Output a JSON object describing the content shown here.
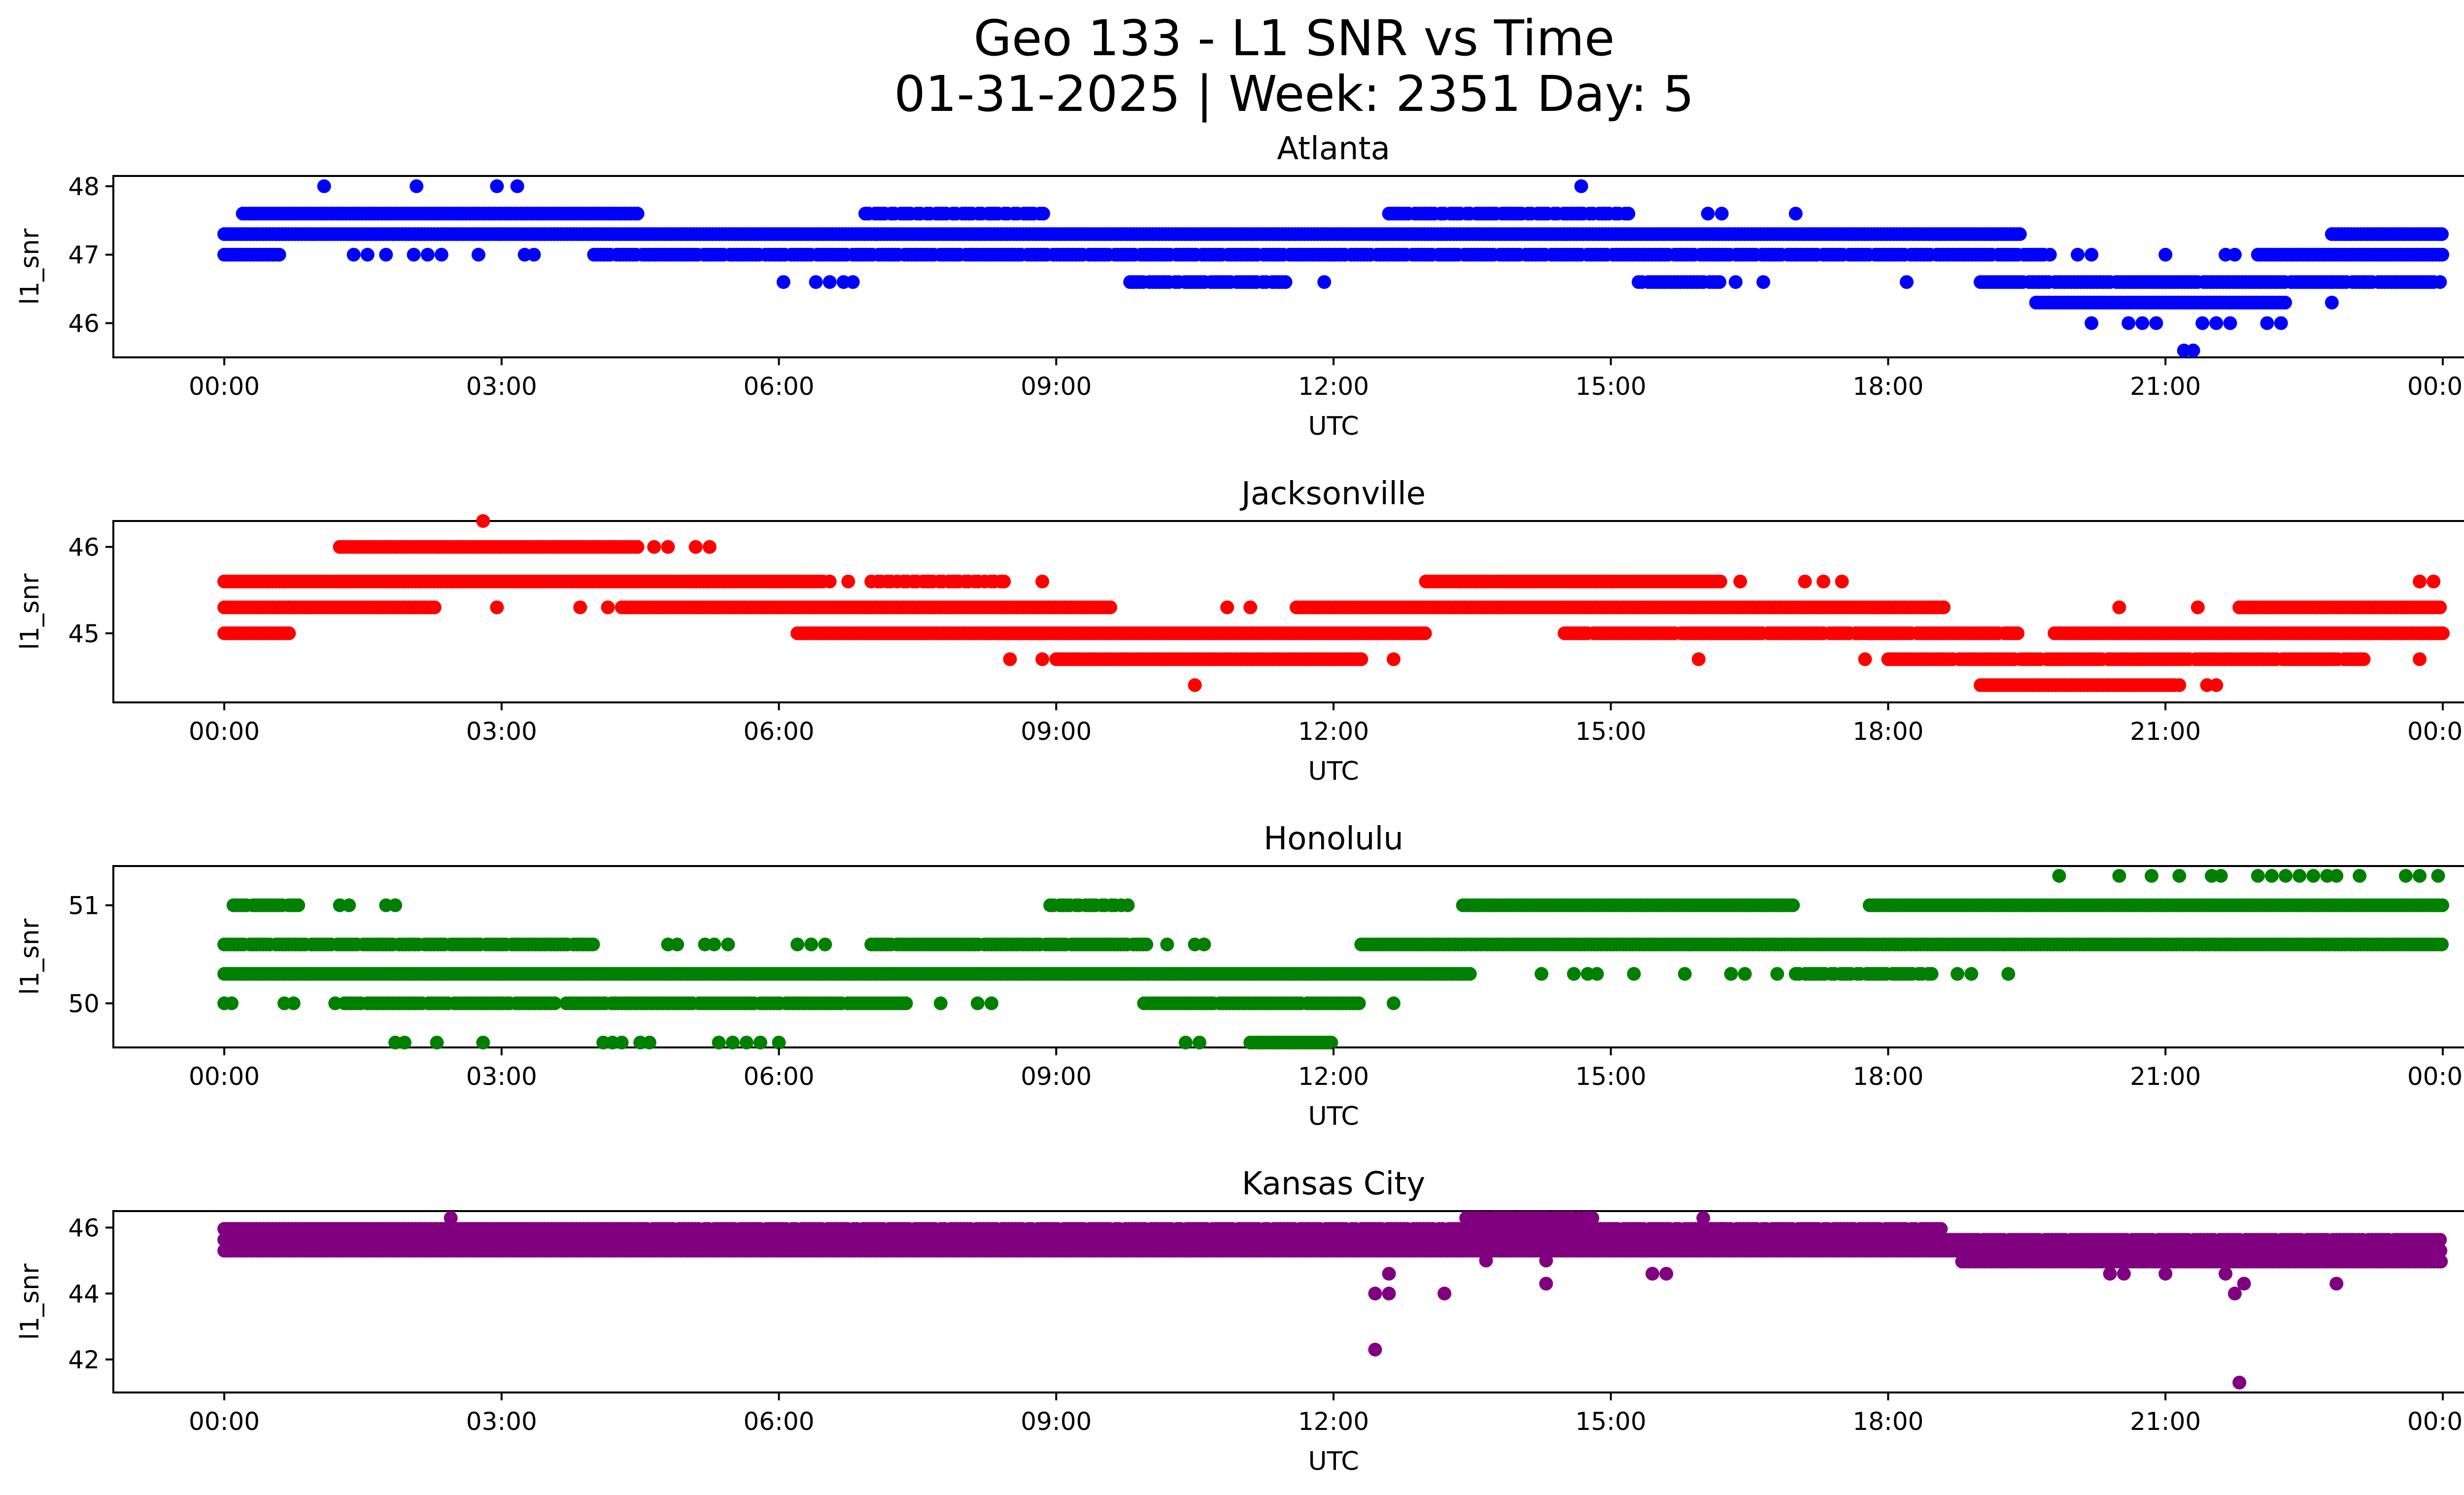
{
  "figure": {
    "title_line1": "Geo 133 - L1 SNR vs Time",
    "title_line2": "01-31-2025 | Week: 2351 Day: 5"
  },
  "chart_data": [
    {
      "type": "scatter",
      "title": "Atlanta",
      "xlabel": "UTC",
      "ylabel": "l1_snr",
      "color": "#0000ff",
      "xlim_hours": [
        -1.2,
        25.2
      ],
      "ylim": [
        45.5,
        48.15
      ],
      "yticks": [
        46,
        47,
        48
      ],
      "xticks_hours": [
        0,
        3,
        6,
        9,
        12,
        15,
        18,
        21,
        24
      ],
      "xtick_labels": [
        "00:00",
        "03:00",
        "06:00",
        "09:00",
        "12:00",
        "15:00",
        "18:00",
        "21:00",
        "00:00"
      ],
      "bands": [
        {
          "y": 47.3,
          "from": 0.0,
          "to": 19.45,
          "density": 1.0
        },
        {
          "y": 47.0,
          "from": 0.0,
          "to": 0.6,
          "density": 1.0
        },
        {
          "y": 47.0,
          "from": 4.0,
          "to": 19.7,
          "density": 0.9
        },
        {
          "y": 47.0,
          "from": 22.0,
          "to": 24.0,
          "density": 1.0
        },
        {
          "y": 47.6,
          "from": 0.2,
          "to": 4.5,
          "density": 1.0
        },
        {
          "y": 47.6,
          "from": 6.9,
          "to": 8.9,
          "density": 0.75
        },
        {
          "y": 47.6,
          "from": 12.6,
          "to": 15.2,
          "density": 0.8
        },
        {
          "y": 46.6,
          "from": 9.8,
          "to": 11.5,
          "density": 0.85
        },
        {
          "y": 46.6,
          "from": 15.3,
          "to": 16.2,
          "density": 0.9
        },
        {
          "y": 46.6,
          "from": 19.0,
          "to": 24.0,
          "density": 0.95
        },
        {
          "y": 46.3,
          "from": 19.6,
          "to": 22.3,
          "density": 1.0
        },
        {
          "y": 47.3,
          "from": 22.8,
          "to": 24.0,
          "density": 1.0
        }
      ],
      "points": [
        {
          "x": 1.08,
          "y": 48.0
        },
        {
          "x": 2.08,
          "y": 48.0
        },
        {
          "x": 2.95,
          "y": 48.0
        },
        {
          "x": 3.17,
          "y": 48.0
        },
        {
          "x": 14.68,
          "y": 48.0
        },
        {
          "x": 1.4,
          "y": 47.0
        },
        {
          "x": 1.55,
          "y": 47.0
        },
        {
          "x": 1.75,
          "y": 47.0
        },
        {
          "x": 2.05,
          "y": 47.0
        },
        {
          "x": 2.2,
          "y": 47.0
        },
        {
          "x": 2.35,
          "y": 47.0
        },
        {
          "x": 2.75,
          "y": 47.0
        },
        {
          "x": 3.25,
          "y": 47.0
        },
        {
          "x": 3.35,
          "y": 47.0
        },
        {
          "x": 6.05,
          "y": 46.6
        },
        {
          "x": 6.4,
          "y": 46.6
        },
        {
          "x": 6.55,
          "y": 46.6
        },
        {
          "x": 6.7,
          "y": 46.6
        },
        {
          "x": 6.8,
          "y": 46.6
        },
        {
          "x": 11.9,
          "y": 46.6
        },
        {
          "x": 16.35,
          "y": 46.6
        },
        {
          "x": 16.65,
          "y": 46.6
        },
        {
          "x": 18.2,
          "y": 46.6
        },
        {
          "x": 16.05,
          "y": 47.6
        },
        {
          "x": 16.2,
          "y": 47.6
        },
        {
          "x": 17.0,
          "y": 47.6
        },
        {
          "x": 20.2,
          "y": 46.0
        },
        {
          "x": 20.6,
          "y": 46.0
        },
        {
          "x": 20.75,
          "y": 46.0
        },
        {
          "x": 20.9,
          "y": 46.0
        },
        {
          "x": 21.4,
          "y": 46.0
        },
        {
          "x": 21.55,
          "y": 46.0
        },
        {
          "x": 21.7,
          "y": 46.0
        },
        {
          "x": 22.1,
          "y": 46.0
        },
        {
          "x": 22.25,
          "y": 46.0
        },
        {
          "x": 21.2,
          "y": 45.6
        },
        {
          "x": 21.3,
          "y": 45.6
        },
        {
          "x": 19.75,
          "y": 47.0
        },
        {
          "x": 20.05,
          "y": 47.0
        },
        {
          "x": 20.2,
          "y": 47.0
        },
        {
          "x": 21.0,
          "y": 47.0
        },
        {
          "x": 21.65,
          "y": 47.0
        },
        {
          "x": 21.75,
          "y": 47.0
        },
        {
          "x": 22.8,
          "y": 46.3
        },
        {
          "x": 23.7,
          "y": 46.6
        },
        {
          "x": 23.8,
          "y": 46.6
        }
      ]
    },
    {
      "type": "scatter",
      "title": "Jacksonville",
      "xlabel": "UTC",
      "ylabel": "l1_snr",
      "color": "#ff0000",
      "xlim_hours": [
        -1.2,
        25.2
      ],
      "ylim": [
        44.2,
        46.3
      ],
      "yticks": [
        45,
        46
      ],
      "xticks_hours": [
        0,
        3,
        6,
        9,
        12,
        15,
        18,
        21,
        24
      ],
      "xtick_labels": [
        "00:00",
        "03:00",
        "06:00",
        "09:00",
        "12:00",
        "15:00",
        "18:00",
        "21:00",
        "00:00"
      ],
      "bands": [
        {
          "y": 45.3,
          "from": 0.0,
          "to": 0.7,
          "density": 1.0
        },
        {
          "y": 45.0,
          "from": 0.0,
          "to": 0.7,
          "density": 1.0
        },
        {
          "y": 45.6,
          "from": 0.0,
          "to": 6.5,
          "density": 1.0
        },
        {
          "y": 45.3,
          "from": 0.7,
          "to": 2.3,
          "density": 1.0
        },
        {
          "y": 45.3,
          "from": 4.3,
          "to": 9.6,
          "density": 1.0
        },
        {
          "y": 46.0,
          "from": 1.25,
          "to": 4.5,
          "density": 1.0
        },
        {
          "y": 45.6,
          "from": 7.0,
          "to": 8.5,
          "density": 0.7
        },
        {
          "y": 45.0,
          "from": 6.2,
          "to": 13.0,
          "density": 1.0
        },
        {
          "y": 44.7,
          "from": 9.0,
          "to": 12.3,
          "density": 1.0
        },
        {
          "y": 45.3,
          "from": 11.6,
          "to": 18.6,
          "density": 1.0
        },
        {
          "y": 45.6,
          "from": 13.0,
          "to": 16.2,
          "density": 1.0
        },
        {
          "y": 45.0,
          "from": 14.5,
          "to": 19.4,
          "density": 0.95
        },
        {
          "y": 44.7,
          "from": 18.0,
          "to": 23.2,
          "density": 0.95
        },
        {
          "y": 44.4,
          "from": 19.0,
          "to": 21.1,
          "density": 1.0
        },
        {
          "y": 45.0,
          "from": 19.8,
          "to": 24.0,
          "density": 1.0
        },
        {
          "y": 45.3,
          "from": 21.8,
          "to": 24.0,
          "density": 1.0
        }
      ],
      "points": [
        {
          "x": 2.8,
          "y": 46.3
        },
        {
          "x": 2.95,
          "y": 45.3
        },
        {
          "x": 3.85,
          "y": 45.3
        },
        {
          "x": 4.15,
          "y": 45.3
        },
        {
          "x": 4.65,
          "y": 46.0
        },
        {
          "x": 4.8,
          "y": 46.0
        },
        {
          "x": 5.1,
          "y": 46.0
        },
        {
          "x": 5.25,
          "y": 46.0
        },
        {
          "x": 6.55,
          "y": 45.6
        },
        {
          "x": 6.75,
          "y": 45.6
        },
        {
          "x": 8.85,
          "y": 45.6
        },
        {
          "x": 8.5,
          "y": 44.7
        },
        {
          "x": 8.85,
          "y": 44.7
        },
        {
          "x": 10.5,
          "y": 44.4
        },
        {
          "x": 10.85,
          "y": 45.3
        },
        {
          "x": 11.1,
          "y": 45.3
        },
        {
          "x": 12.3,
          "y": 44.7
        },
        {
          "x": 12.65,
          "y": 44.7
        },
        {
          "x": 16.4,
          "y": 45.6
        },
        {
          "x": 17.1,
          "y": 45.6
        },
        {
          "x": 17.3,
          "y": 45.6
        },
        {
          "x": 17.5,
          "y": 45.6
        },
        {
          "x": 15.95,
          "y": 44.7
        },
        {
          "x": 17.75,
          "y": 44.7
        },
        {
          "x": 18.45,
          "y": 45.3
        },
        {
          "x": 18.6,
          "y": 45.3
        },
        {
          "x": 19.05,
          "y": 45.0
        },
        {
          "x": 21.15,
          "y": 44.4
        },
        {
          "x": 21.45,
          "y": 44.4
        },
        {
          "x": 21.55,
          "y": 44.4
        },
        {
          "x": 20.5,
          "y": 45.3
        },
        {
          "x": 21.35,
          "y": 45.3
        },
        {
          "x": 23.75,
          "y": 45.6
        },
        {
          "x": 23.9,
          "y": 45.6
        },
        {
          "x": 23.75,
          "y": 44.7
        }
      ]
    },
    {
      "type": "scatter",
      "title": "Honolulu",
      "xlabel": "UTC",
      "ylabel": "l1_snr",
      "color": "#008000",
      "xlim_hours": [
        -1.2,
        25.2
      ],
      "ylim": [
        49.55,
        51.4
      ],
      "yticks": [
        50,
        51
      ],
      "xticks_hours": [
        0,
        3,
        6,
        9,
        12,
        15,
        18,
        21,
        24
      ],
      "xtick_labels": [
        "00:00",
        "03:00",
        "06:00",
        "09:00",
        "12:00",
        "15:00",
        "18:00",
        "21:00",
        "00:00"
      ],
      "bands": [
        {
          "y": 50.6,
          "from": 0.0,
          "to": 4.0,
          "density": 0.9
        },
        {
          "y": 50.3,
          "from": 0.0,
          "to": 13.5,
          "density": 1.0
        },
        {
          "y": 50.0,
          "from": 1.3,
          "to": 3.6,
          "density": 0.95
        },
        {
          "y": 50.0,
          "from": 3.7,
          "to": 7.4,
          "density": 0.95
        },
        {
          "y": 50.6,
          "from": 7.0,
          "to": 10.0,
          "density": 0.95
        },
        {
          "y": 50.0,
          "from": 10.0,
          "to": 12.3,
          "density": 0.95
        },
        {
          "y": 49.6,
          "from": 11.1,
          "to": 12.0,
          "density": 1.0
        },
        {
          "y": 50.6,
          "from": 12.3,
          "to": 24.0,
          "density": 1.0
        },
        {
          "y": 51.0,
          "from": 13.4,
          "to": 17.0,
          "density": 1.0
        },
        {
          "y": 51.0,
          "from": 17.8,
          "to": 24.0,
          "density": 1.0
        },
        {
          "y": 50.3,
          "from": 17.0,
          "to": 18.5,
          "density": 0.8
        },
        {
          "y": 51.0,
          "from": 0.1,
          "to": 0.8,
          "density": 0.9
        },
        {
          "y": 51.0,
          "from": 8.9,
          "to": 9.8,
          "density": 0.7
        }
      ],
      "points": [
        {
          "x": 0.0,
          "y": 50.0
        },
        {
          "x": 0.08,
          "y": 50.0
        },
        {
          "x": 0.65,
          "y": 50.0
        },
        {
          "x": 0.75,
          "y": 50.0
        },
        {
          "x": 1.2,
          "y": 50.0
        },
        {
          "x": 1.25,
          "y": 51.0
        },
        {
          "x": 1.35,
          "y": 51.0
        },
        {
          "x": 1.75,
          "y": 51.0
        },
        {
          "x": 1.85,
          "y": 51.0
        },
        {
          "x": 1.85,
          "y": 49.6
        },
        {
          "x": 1.95,
          "y": 49.6
        },
        {
          "x": 2.3,
          "y": 49.6
        },
        {
          "x": 2.8,
          "y": 49.6
        },
        {
          "x": 4.1,
          "y": 49.6
        },
        {
          "x": 4.2,
          "y": 49.6
        },
        {
          "x": 4.3,
          "y": 49.6
        },
        {
          "x": 4.5,
          "y": 49.6
        },
        {
          "x": 4.6,
          "y": 49.6
        },
        {
          "x": 5.35,
          "y": 49.6
        },
        {
          "x": 5.5,
          "y": 49.6
        },
        {
          "x": 5.65,
          "y": 49.6
        },
        {
          "x": 5.8,
          "y": 49.6
        },
        {
          "x": 6.0,
          "y": 49.6
        },
        {
          "x": 4.8,
          "y": 50.6
        },
        {
          "x": 4.9,
          "y": 50.6
        },
        {
          "x": 5.2,
          "y": 50.6
        },
        {
          "x": 5.3,
          "y": 50.6
        },
        {
          "x": 5.45,
          "y": 50.6
        },
        {
          "x": 6.2,
          "y": 50.6
        },
        {
          "x": 6.35,
          "y": 50.6
        },
        {
          "x": 6.5,
          "y": 50.6
        },
        {
          "x": 7.75,
          "y": 50.0
        },
        {
          "x": 8.15,
          "y": 50.0
        },
        {
          "x": 8.3,
          "y": 50.0
        },
        {
          "x": 9.95,
          "y": 50.0
        },
        {
          "x": 10.4,
          "y": 49.6
        },
        {
          "x": 10.55,
          "y": 49.6
        },
        {
          "x": 10.5,
          "y": 50.6
        },
        {
          "x": 10.6,
          "y": 50.6
        },
        {
          "x": 10.2,
          "y": 50.6
        },
        {
          "x": 12.65,
          "y": 50.0
        },
        {
          "x": 14.25,
          "y": 50.3
        },
        {
          "x": 14.6,
          "y": 50.3
        },
        {
          "x": 14.75,
          "y": 50.3
        },
        {
          "x": 14.85,
          "y": 50.3
        },
        {
          "x": 15.25,
          "y": 50.3
        },
        {
          "x": 15.8,
          "y": 50.3
        },
        {
          "x": 16.3,
          "y": 50.3
        },
        {
          "x": 16.45,
          "y": 50.3
        },
        {
          "x": 16.8,
          "y": 50.3
        },
        {
          "x": 18.75,
          "y": 50.3
        },
        {
          "x": 18.9,
          "y": 50.3
        },
        {
          "x": 19.3,
          "y": 50.3
        },
        {
          "x": 19.85,
          "y": 51.3
        },
        {
          "x": 20.5,
          "y": 51.3
        },
        {
          "x": 20.85,
          "y": 51.3
        },
        {
          "x": 21.15,
          "y": 51.3
        },
        {
          "x": 21.5,
          "y": 51.3
        },
        {
          "x": 21.6,
          "y": 51.3
        },
        {
          "x": 22.0,
          "y": 51.3
        },
        {
          "x": 22.15,
          "y": 51.3
        },
        {
          "x": 22.3,
          "y": 51.3
        },
        {
          "x": 22.45,
          "y": 51.3
        },
        {
          "x": 22.6,
          "y": 51.3
        },
        {
          "x": 22.75,
          "y": 51.3
        },
        {
          "x": 22.85,
          "y": 51.3
        },
        {
          "x": 23.1,
          "y": 51.3
        },
        {
          "x": 23.6,
          "y": 51.3
        },
        {
          "x": 23.75,
          "y": 51.3
        },
        {
          "x": 23.95,
          "y": 51.3
        }
      ]
    },
    {
      "type": "scatter",
      "title": "Kansas City",
      "xlabel": "UTC",
      "ylabel": "l1_snr",
      "color": "#800080",
      "xlim_hours": [
        -1.2,
        25.2
      ],
      "ylim": [
        41.0,
        46.5
      ],
      "yticks": [
        42,
        44,
        46
      ],
      "xticks_hours": [
        0,
        3,
        6,
        9,
        12,
        15,
        18,
        21,
        24
      ],
      "xtick_labels": [
        "00:00",
        "03:00",
        "06:00",
        "09:00",
        "12:00",
        "15:00",
        "18:00",
        "21:00",
        "00:00"
      ],
      "bands": [
        {
          "y": 45.96,
          "from": 0.0,
          "to": 4.5,
          "density": 1.0
        },
        {
          "y": 45.63,
          "from": 0.0,
          "to": 19.0,
          "density": 1.0
        },
        {
          "y": 45.3,
          "from": 0.0,
          "to": 24.0,
          "density": 1.0
        },
        {
          "y": 45.96,
          "from": 4.5,
          "to": 18.6,
          "density": 0.85
        },
        {
          "y": 45.63,
          "from": 19.0,
          "to": 24.0,
          "density": 0.9
        },
        {
          "y": 44.97,
          "from": 18.8,
          "to": 24.0,
          "density": 1.0
        },
        {
          "y": 46.29,
          "from": 13.4,
          "to": 14.8,
          "density": 0.9
        }
      ],
      "points": [
        {
          "x": 2.45,
          "y": 46.29
        },
        {
          "x": 3.25,
          "y": 45.3
        },
        {
          "x": 11.05,
          "y": 45.96
        },
        {
          "x": 12.45,
          "y": 42.3
        },
        {
          "x": 12.45,
          "y": 44.0
        },
        {
          "x": 12.6,
          "y": 44.0
        },
        {
          "x": 12.6,
          "y": 44.6
        },
        {
          "x": 13.2,
          "y": 44.0
        },
        {
          "x": 13.65,
          "y": 45.0
        },
        {
          "x": 13.8,
          "y": 45.3
        },
        {
          "x": 14.3,
          "y": 44.3
        },
        {
          "x": 14.3,
          "y": 45.0
        },
        {
          "x": 14.1,
          "y": 46.29
        },
        {
          "x": 15.45,
          "y": 44.6
        },
        {
          "x": 15.6,
          "y": 44.6
        },
        {
          "x": 15.35,
          "y": 45.3
        },
        {
          "x": 16.0,
          "y": 46.29
        },
        {
          "x": 16.2,
          "y": 45.96
        },
        {
          "x": 20.4,
          "y": 44.6
        },
        {
          "x": 20.55,
          "y": 44.6
        },
        {
          "x": 21.0,
          "y": 44.6
        },
        {
          "x": 21.65,
          "y": 44.6
        },
        {
          "x": 21.75,
          "y": 44.0
        },
        {
          "x": 21.85,
          "y": 44.3
        },
        {
          "x": 22.85,
          "y": 44.3
        },
        {
          "x": 21.8,
          "y": 41.3
        }
      ]
    }
  ]
}
